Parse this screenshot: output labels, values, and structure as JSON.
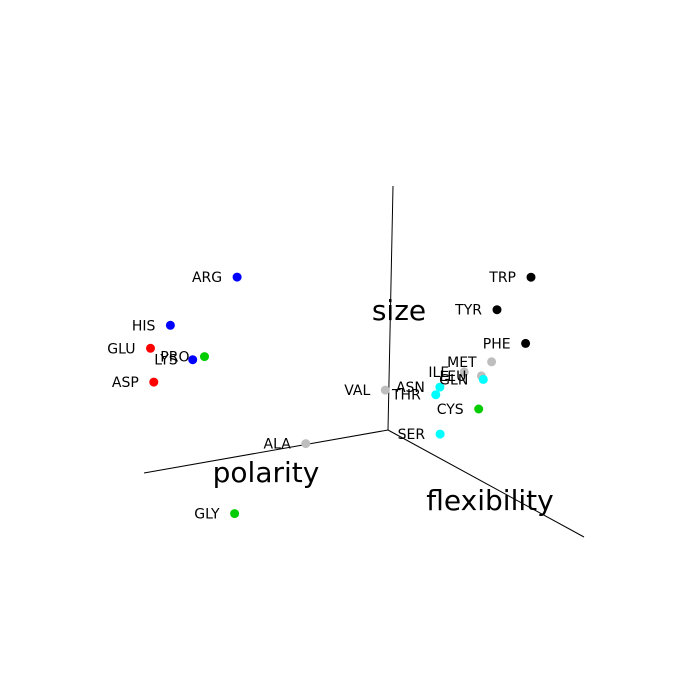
{
  "chart_data": {
    "type": "scatter3d",
    "title": "",
    "axes": {
      "x": {
        "label": "polarity"
      },
      "y": {
        "label": "flexibility"
      },
      "z": {
        "label": "size"
      }
    },
    "grid": false,
    "legend": false,
    "colors": {
      "red": "#ff0000",
      "blue": "#0000ff",
      "green": "#00cc00",
      "cyan": "#00ffff",
      "gray": "#bebebe",
      "black": "#000000"
    },
    "points": [
      {
        "label": "TRP",
        "color": "black",
        "x": 0.02,
        "y": 0.73,
        "z": 0.95
      },
      {
        "label": "TYR",
        "color": "black",
        "x": 0.1,
        "y": 0.66,
        "z": 0.8
      },
      {
        "label": "PHE",
        "color": "black",
        "x": 0.02,
        "y": 0.71,
        "z": 0.67
      },
      {
        "label": "MET",
        "color": "gray",
        "x": 0.02,
        "y": 0.54,
        "z": 0.52
      },
      {
        "label": "ILE",
        "color": "gray",
        "x": 0.05,
        "y": 0.44,
        "z": 0.44
      },
      {
        "label": "LEU",
        "color": "gray",
        "x": 0.02,
        "y": 0.49,
        "z": 0.44
      },
      {
        "label": "GLN",
        "color": "cyan",
        "x": 0.02,
        "y": 0.5,
        "z": 0.43
      },
      {
        "label": "VAL",
        "color": "gray",
        "x": 0.3,
        "y": 0.35,
        "z": 0.37
      },
      {
        "label": "ASN",
        "color": "cyan",
        "x": 0.1,
        "y": 0.38,
        "z": 0.36
      },
      {
        "label": "CYS",
        "color": "green",
        "x": 0.02,
        "y": 0.48,
        "z": 0.3
      },
      {
        "label": "THR",
        "color": "cyan",
        "x": 0.1,
        "y": 0.36,
        "z": 0.32
      },
      {
        "label": "SER",
        "color": "cyan",
        "x": 0.03,
        "y": 0.3,
        "z": 0.12
      },
      {
        "label": "ALA",
        "color": "gray",
        "x": 0.5,
        "y": 0.2,
        "z": 0.12
      },
      {
        "label": "GLY",
        "color": "green",
        "x": 0.95,
        "y": 0.4,
        "z": 0.0
      },
      {
        "label": "ARG",
        "color": "blue",
        "x": 0.65,
        "y": 0.02,
        "z": 0.75
      },
      {
        "label": "HIS",
        "color": "blue",
        "x": 0.92,
        "y": 0.02,
        "z": 0.6
      },
      {
        "label": "LYS",
        "color": "blue",
        "x": 0.85,
        "y": 0.05,
        "z": 0.46
      },
      {
        "label": "PRO",
        "color": "green",
        "x": 0.81,
        "y": 0.06,
        "z": 0.47
      },
      {
        "label": "GLU",
        "color": "red",
        "x": 1.0,
        "y": 0.02,
        "z": 0.52
      },
      {
        "label": "ASP",
        "color": "red",
        "x": 1.0,
        "y": 0.04,
        "z": 0.39
      }
    ]
  }
}
